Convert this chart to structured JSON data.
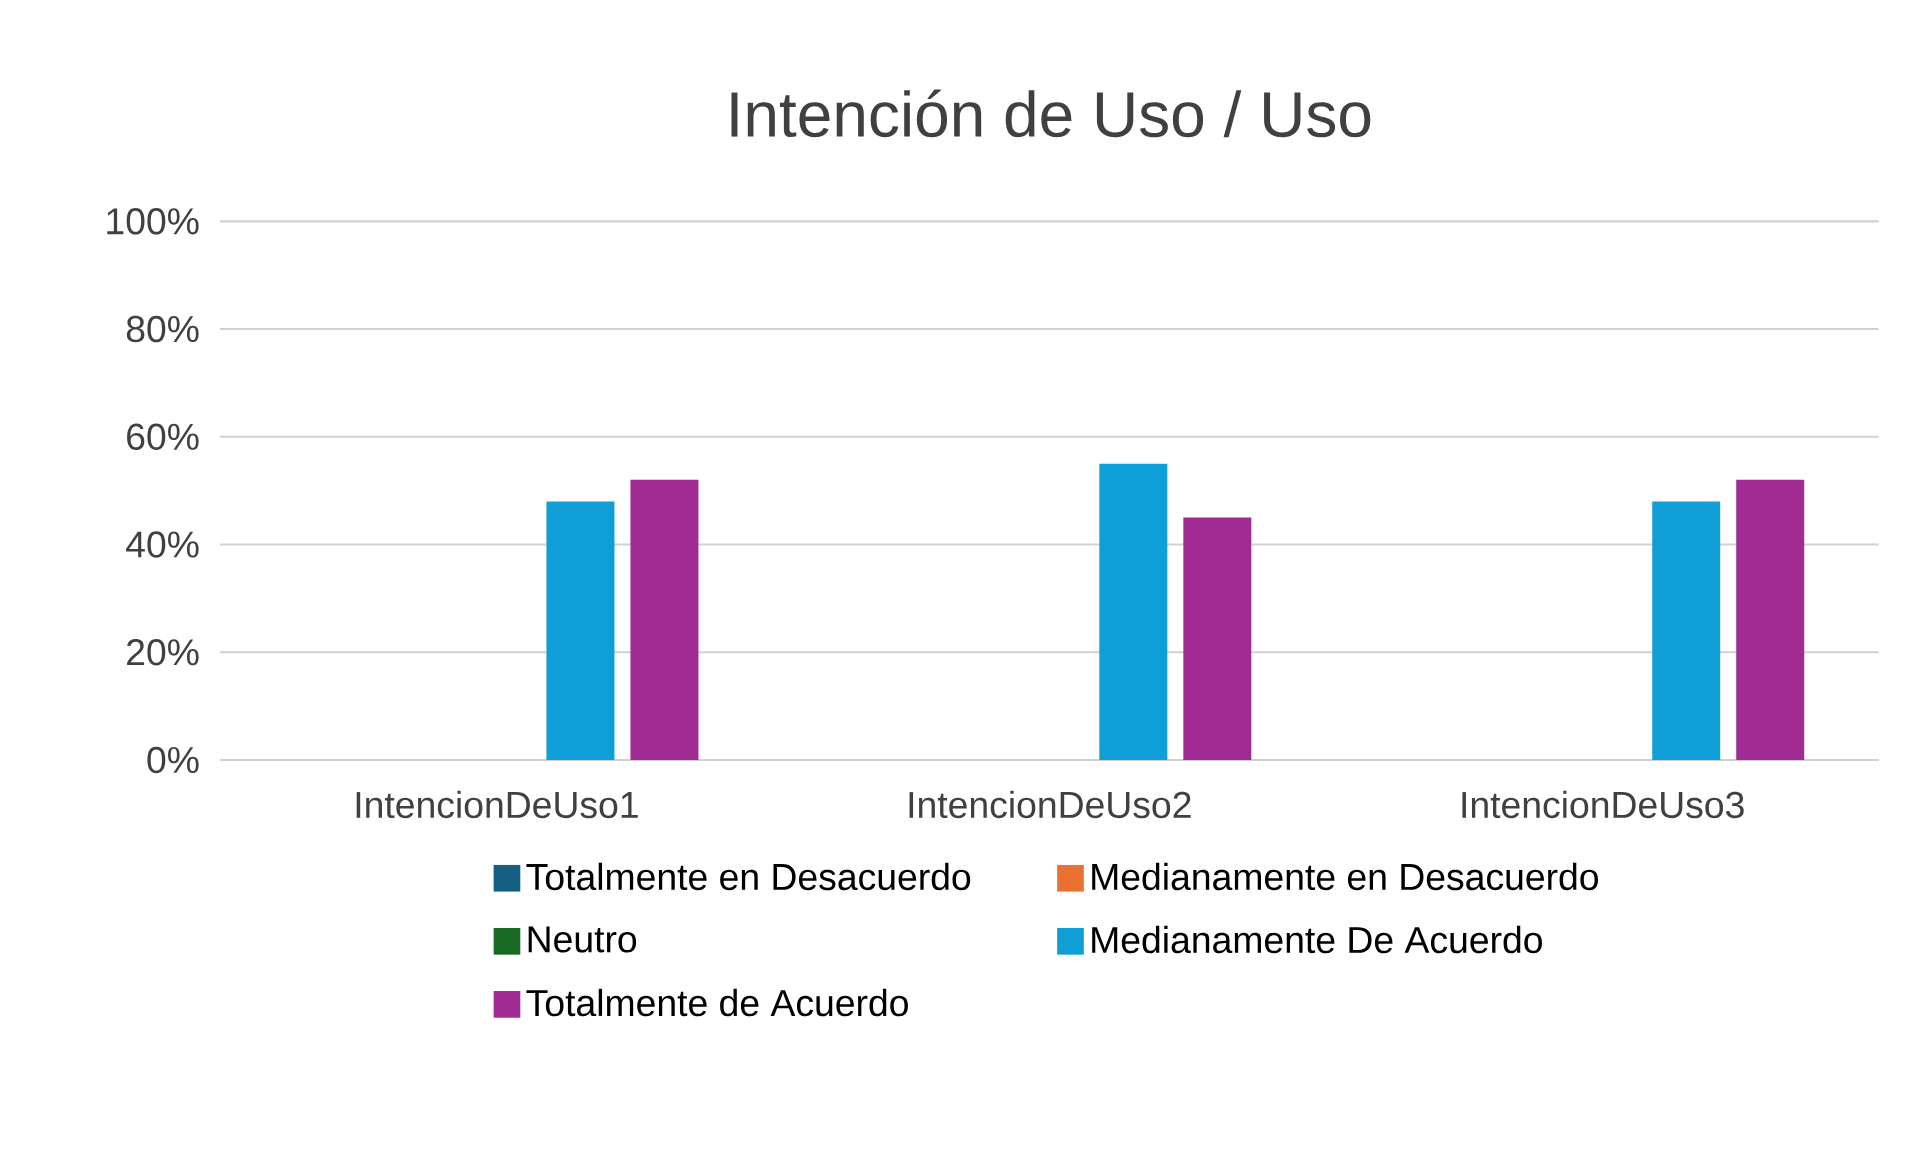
{
  "chart_data": {
    "type": "bar",
    "title": "Intención de Uso / Uso",
    "categories": [
      "IntencionDeUso1",
      "IntencionDeUso2",
      "IntencionDeUso3"
    ],
    "series": [
      {
        "name": "Totalmente en Desacuerdo",
        "color": "#156082",
        "values": [
          0,
          0,
          0
        ]
      },
      {
        "name": "Medianamente en Desacuerdo",
        "color": "#e97132",
        "values": [
          0,
          0,
          0
        ]
      },
      {
        "name": "Neutro",
        "color": "#196b24",
        "values": [
          0,
          0,
          0
        ]
      },
      {
        "name": "Medianamente De Acuerdo",
        "color": "#0f9ed5",
        "values": [
          48,
          55,
          48
        ]
      },
      {
        "name": "Totalmente de Acuerdo",
        "color": "#a02b93",
        "values": [
          52,
          45,
          52
        ]
      }
    ],
    "ylim": [
      0,
      100
    ],
    "yticks": [
      {
        "value": 0,
        "label": "0%"
      },
      {
        "value": 20,
        "label": "20%"
      },
      {
        "value": 40,
        "label": "40%"
      },
      {
        "value": 60,
        "label": "60%"
      },
      {
        "value": 80,
        "label": "80%"
      },
      {
        "value": 100,
        "label": "100%"
      }
    ],
    "grid": "y",
    "legend": "bottom"
  }
}
